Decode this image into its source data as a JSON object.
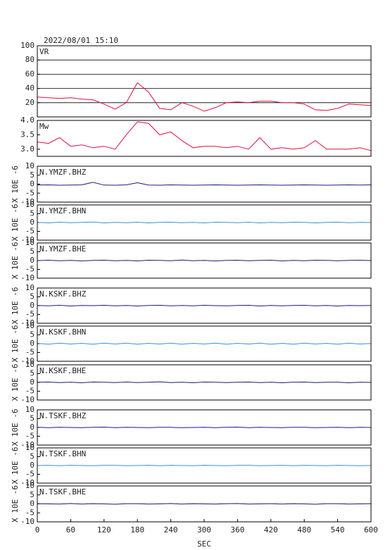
{
  "chart_data": [
    {
      "type": "line",
      "title": "2022/08/01 15:10",
      "label": "VR",
      "x": [
        0,
        20,
        40,
        60,
        80,
        100,
        120,
        140,
        160,
        180,
        200,
        220,
        240,
        260,
        280,
        300,
        320,
        340,
        360,
        380,
        400,
        420,
        440,
        460,
        480,
        500,
        520,
        540,
        560,
        580,
        600
      ],
      "series": [
        {
          "color": "#e0103c",
          "values": [
            28,
            27,
            26,
            27,
            25,
            24,
            18,
            11,
            20,
            48,
            35,
            12,
            10,
            20,
            15,
            8,
            13,
            20,
            21,
            20,
            22,
            22,
            20,
            20,
            18,
            10,
            9,
            12,
            18,
            17,
            16
          ]
        }
      ],
      "ylim": [
        0,
        100
      ],
      "yticks": [
        20,
        40,
        60,
        80,
        100
      ],
      "grid": true
    },
    {
      "type": "line",
      "label": "Mw",
      "x": [
        0,
        20,
        40,
        60,
        80,
        100,
        120,
        140,
        160,
        180,
        200,
        220,
        240,
        260,
        280,
        300,
        320,
        340,
        360,
        380,
        400,
        420,
        440,
        460,
        480,
        500,
        520,
        540,
        560,
        580,
        600
      ],
      "series": [
        {
          "color": "#e0103c",
          "values": [
            3.25,
            3.2,
            3.4,
            3.1,
            3.15,
            3.05,
            3.1,
            3.0,
            3.5,
            3.95,
            3.9,
            3.5,
            3.6,
            3.3,
            3.05,
            3.1,
            3.1,
            3.05,
            3.1,
            3.0,
            3.4,
            3.0,
            3.05,
            3.0,
            3.05,
            3.3,
            3.0,
            3.0,
            3.0,
            3.05,
            2.95
          ]
        }
      ],
      "ylim": [
        2.75,
        4.0
      ],
      "yticks": [
        {
          "value": 3.0,
          "label": "3.0"
        },
        3.5,
        {
          "value": 4.0,
          "label": "4.0"
        }
      ],
      "grid": false
    },
    {
      "type": "line",
      "label": "N.YMZF.BHZ",
      "ylabel": "X 10E -6",
      "x": [
        0,
        20,
        40,
        60,
        80,
        100,
        120,
        140,
        160,
        180,
        200,
        220,
        240,
        260,
        280,
        300,
        320,
        340,
        360,
        380,
        400,
        420,
        440,
        460,
        480,
        500,
        520,
        540,
        560,
        580,
        600
      ],
      "series": [
        {
          "color": "#1a1a8c",
          "values": [
            -0.5,
            -0.4,
            -0.6,
            -0.5,
            -0.4,
            1.0,
            -0.5,
            -0.6,
            -0.4,
            0.8,
            -0.5,
            -0.6,
            -0.4,
            -0.5,
            -0.6,
            -0.5,
            -0.4,
            -0.5,
            -0.6,
            -0.5,
            -0.4,
            -0.5,
            -0.6,
            -0.5,
            -0.4,
            -0.5,
            -0.6,
            -0.5,
            -0.4,
            -0.5,
            -0.4
          ]
        }
      ],
      "ylim": [
        -10,
        10
      ],
      "yticks": [
        -10,
        -5,
        0,
        5,
        10
      ],
      "grid": false
    },
    {
      "type": "line",
      "label": "N.YMZF.BHN",
      "ylabel": "X 10E -6",
      "x": [
        0,
        20,
        40,
        60,
        80,
        100,
        120,
        140,
        160,
        180,
        200,
        220,
        240,
        260,
        280,
        300,
        320,
        340,
        360,
        380,
        400,
        420,
        440,
        460,
        480,
        500,
        520,
        540,
        560,
        580,
        600
      ],
      "series": [
        {
          "color": "#3a8ee0",
          "values": [
            0.1,
            -0.2,
            0.2,
            -0.1,
            0.1,
            0.3,
            -0.2,
            0.1,
            -0.1,
            0.2,
            -0.2,
            0.1,
            0.2,
            -0.1,
            0.1,
            -0.2,
            0.2,
            0.1,
            -0.1,
            0.2,
            -0.2,
            0.1,
            -0.1,
            0.2,
            0.1,
            -0.2,
            0.1,
            0.2,
            -0.1,
            0.1,
            0.0
          ]
        }
      ],
      "ylim": [
        -10,
        10
      ],
      "yticks": [
        -10,
        -5,
        0,
        5,
        10
      ],
      "grid": false
    },
    {
      "type": "line",
      "label": "N.YMZF.BHE",
      "ylabel": "X 10E -6",
      "x": [
        0,
        20,
        40,
        60,
        80,
        100,
        120,
        140,
        160,
        180,
        200,
        220,
        240,
        260,
        280,
        300,
        320,
        340,
        360,
        380,
        400,
        420,
        440,
        460,
        480,
        500,
        520,
        540,
        560,
        580,
        600
      ],
      "series": [
        {
          "color": "#1a1a6e",
          "values": [
            0.0,
            0.2,
            -0.1,
            0.1,
            -0.2,
            0.1,
            0.2,
            -0.1,
            0.1,
            -0.2,
            0.2,
            0.1,
            -0.1,
            0.3,
            -0.1,
            0.1,
            -0.2,
            0.1,
            0.2,
            -0.1,
            0.1,
            0.2,
            -0.2,
            0.1,
            -0.1,
            0.2,
            0.1,
            -0.1,
            0.1,
            0.2,
            0.0
          ]
        }
      ],
      "ylim": [
        -10,
        10
      ],
      "yticks": [
        -10,
        -5,
        0,
        5,
        10
      ],
      "grid": false
    },
    {
      "type": "line",
      "label": "N.KSKF.BHZ",
      "ylabel": "X 10E -6",
      "x": [
        0,
        20,
        40,
        60,
        80,
        100,
        120,
        140,
        160,
        180,
        200,
        220,
        240,
        260,
        280,
        300,
        320,
        340,
        360,
        380,
        400,
        420,
        440,
        460,
        480,
        500,
        520,
        540,
        560,
        580,
        600
      ],
      "series": [
        {
          "color": "#1a1a8c",
          "values": [
            0.1,
            -0.1,
            0.2,
            -0.2,
            0.1,
            0.0,
            0.2,
            -0.1,
            0.1,
            -0.2,
            0.1,
            0.2,
            -0.1,
            0.1,
            -0.1,
            0.2,
            0.0,
            -0.1,
            0.1,
            0.2,
            -0.2,
            0.1,
            -0.1,
            0.1,
            0.2,
            -0.1,
            0.1,
            -0.2,
            0.1,
            0.0,
            0.1
          ]
        }
      ],
      "ylim": [
        -10,
        10
      ],
      "yticks": [
        -10,
        -5,
        0,
        5,
        10
      ],
      "grid": false
    },
    {
      "type": "line",
      "label": "N.KSKF.BHN",
      "ylabel": "X 10E -6",
      "x": [
        0,
        20,
        40,
        60,
        80,
        100,
        120,
        140,
        160,
        180,
        200,
        220,
        240,
        260,
        280,
        300,
        320,
        340,
        360,
        380,
        400,
        420,
        440,
        460,
        480,
        500,
        520,
        540,
        560,
        580,
        600
      ],
      "series": [
        {
          "color": "#3a8ee0",
          "values": [
            0.2,
            -0.3,
            0.3,
            -0.2,
            0.2,
            -0.3,
            0.3,
            -0.2,
            0.3,
            -0.3,
            0.2,
            -0.2,
            0.3,
            -0.3,
            0.2,
            -0.2,
            0.3,
            -0.3,
            0.2,
            -0.2,
            0.3,
            -0.3,
            0.2,
            -0.3,
            0.3,
            -0.2,
            0.2,
            -0.3,
            0.3,
            -0.2,
            0.1
          ]
        }
      ],
      "ylim": [
        -10,
        10
      ],
      "yticks": [
        -10,
        -5,
        0,
        5,
        10
      ],
      "grid": false
    },
    {
      "type": "line",
      "label": "N.KSKF.BHE",
      "ylabel": "X 10E -6",
      "x": [
        0,
        20,
        40,
        60,
        80,
        100,
        120,
        140,
        160,
        180,
        200,
        220,
        240,
        260,
        280,
        300,
        320,
        340,
        360,
        380,
        400,
        420,
        440,
        460,
        480,
        500,
        520,
        540,
        560,
        580,
        600
      ],
      "series": [
        {
          "color": "#1a1a6e",
          "values": [
            0.1,
            0.2,
            -0.1,
            0.1,
            -0.2,
            0.2,
            0.1,
            -0.1,
            0.2,
            -0.1,
            0.1,
            0.3,
            -0.1,
            0.1,
            -0.2,
            0.2,
            0.1,
            -0.1,
            0.1,
            0.2,
            -0.1,
            0.1,
            -0.2,
            0.1,
            0.2,
            -0.1,
            0.1,
            0.1,
            -0.2,
            0.1,
            0.0
          ]
        }
      ],
      "ylim": [
        -10,
        10
      ],
      "yticks": [
        -10,
        -5,
        0,
        5,
        10
      ],
      "grid": false
    },
    {
      "type": "line",
      "label": "N.TSKF.BHZ",
      "ylabel": "X 10E -6",
      "x": [
        0,
        20,
        40,
        60,
        80,
        100,
        120,
        140,
        160,
        180,
        200,
        220,
        240,
        260,
        280,
        300,
        320,
        340,
        360,
        380,
        400,
        420,
        440,
        460,
        480,
        500,
        520,
        540,
        560,
        580,
        600
      ],
      "series": [
        {
          "color": "#1a1a8c",
          "values": [
            0.1,
            -0.1,
            0.1,
            0.0,
            -0.1,
            0.1,
            0.2,
            -0.1,
            0.1,
            0.0,
            -0.1,
            0.1,
            0.1,
            -0.1,
            0.0,
            0.1,
            -0.1,
            0.1,
            0.2,
            -0.1,
            0.1,
            0.0,
            -0.1,
            0.1,
            0.1,
            -0.1,
            0.0,
            0.1,
            -0.1,
            0.1,
            0.0
          ]
        }
      ],
      "ylim": [
        -10,
        10
      ],
      "yticks": [
        -10,
        -5,
        0,
        5,
        10
      ],
      "grid": false
    },
    {
      "type": "line",
      "label": "N.TSKF.BHN",
      "ylabel": "X 10E -6",
      "x": [
        0,
        20,
        40,
        60,
        80,
        100,
        120,
        140,
        160,
        180,
        200,
        220,
        240,
        260,
        280,
        300,
        320,
        340,
        360,
        380,
        400,
        420,
        440,
        460,
        480,
        500,
        520,
        540,
        560,
        580,
        600
      ],
      "series": [
        {
          "color": "#3a8ee0",
          "values": [
            0.0,
            0.1,
            -0.1,
            0.1,
            0.0,
            -0.1,
            0.1,
            0.1,
            -0.1,
            0.0,
            0.1,
            -0.1,
            0.1,
            0.0,
            -0.1,
            0.1,
            0.0,
            -0.1,
            0.1,
            0.1,
            -0.1,
            0.0,
            0.1,
            -0.1,
            0.1,
            0.0,
            -0.1,
            0.1,
            0.0,
            -0.1,
            0.0
          ]
        }
      ],
      "ylim": [
        -10,
        10
      ],
      "yticks": [
        -10,
        -5,
        0,
        5,
        10
      ],
      "grid": false
    },
    {
      "type": "line",
      "label": "N.TSKF.BHE",
      "ylabel": "X 10E -6",
      "x": [
        0,
        20,
        40,
        60,
        80,
        100,
        120,
        140,
        160,
        180,
        200,
        220,
        240,
        260,
        280,
        300,
        320,
        340,
        360,
        380,
        400,
        420,
        440,
        460,
        480,
        500,
        520,
        540,
        560,
        580,
        600
      ],
      "series": [
        {
          "color": "#1a1a6e",
          "values": [
            0.1,
            0.0,
            -0.1,
            0.2,
            -0.1,
            0.1,
            0.0,
            -0.2,
            0.1,
            0.1,
            -0.1,
            0.0,
            0.2,
            -0.1,
            0.1,
            0.0,
            -0.1,
            0.1,
            0.2,
            -0.1,
            0.0,
            0.1,
            -0.1,
            0.1,
            0.0,
            -0.2,
            0.1,
            0.1,
            -0.1,
            0.0,
            0.1
          ]
        }
      ],
      "ylim": [
        -10,
        10
      ],
      "yticks": [
        -10,
        -5,
        0,
        5,
        10
      ],
      "grid": false,
      "xlim": [
        0,
        600
      ],
      "xticks": [
        0,
        60,
        120,
        180,
        240,
        300,
        360,
        420,
        480,
        540,
        600
      ],
      "xlabel": "SEC"
    }
  ]
}
